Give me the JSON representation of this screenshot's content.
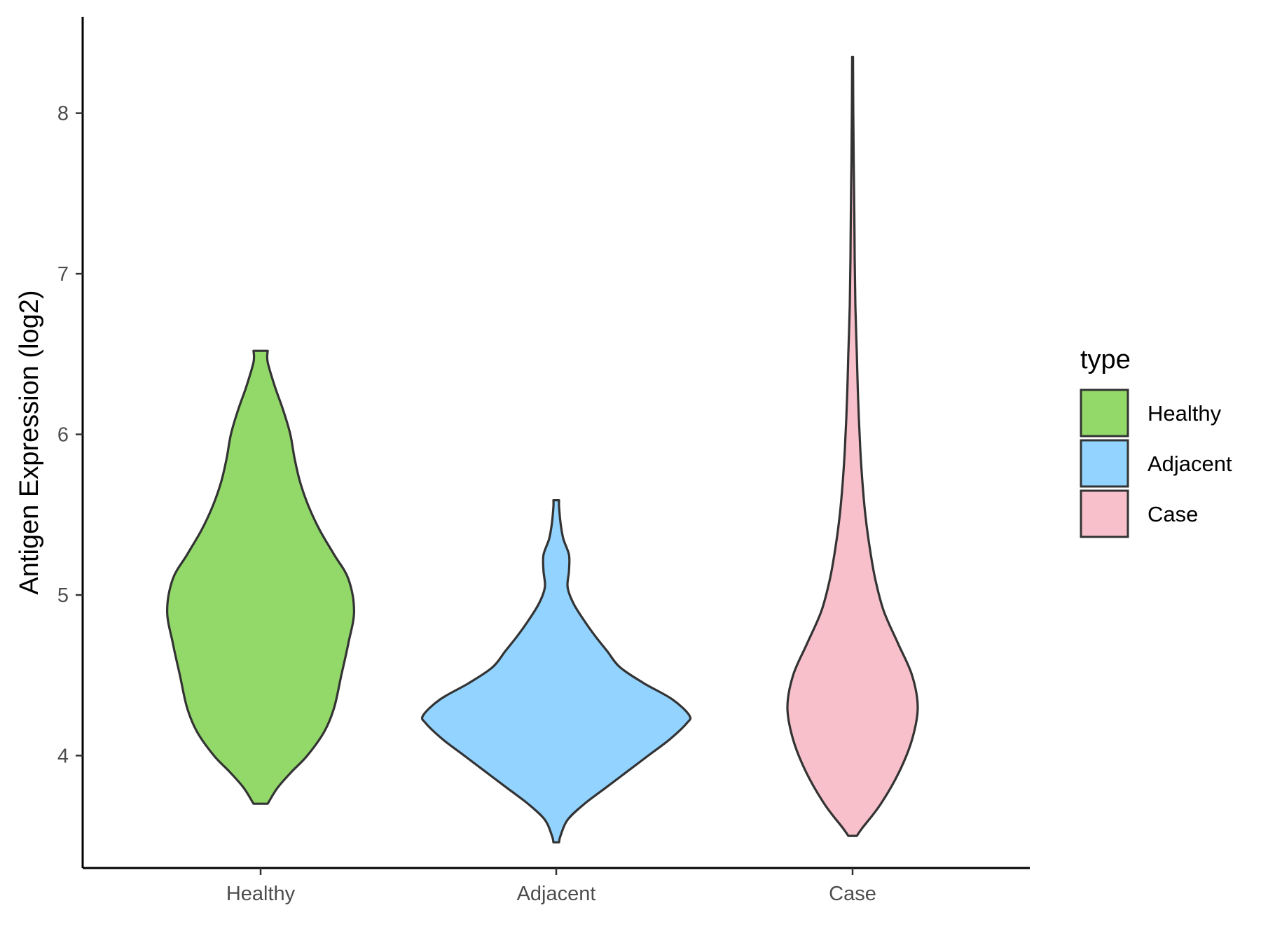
{
  "chart_data": {
    "type": "violin",
    "ylabel": "Antigen Expression (log2)",
    "xlabel": "",
    "ylim": [
      3.3,
      8.6
    ],
    "yticks": [
      4,
      5,
      6,
      7,
      8
    ],
    "categories": [
      "Healthy",
      "Adjacent",
      "Case"
    ],
    "grid": false,
    "legend": {
      "title": "type",
      "position": "right",
      "entries": [
        "Healthy",
        "Adjacent",
        "Case"
      ]
    },
    "series": [
      {
        "category": "Healthy",
        "color": "#93d96a",
        "min": 3.7,
        "max": 6.52,
        "density_profile": [
          [
            3.7,
            0.05
          ],
          [
            3.8,
            0.12
          ],
          [
            3.9,
            0.22
          ],
          [
            4.0,
            0.33
          ],
          [
            4.15,
            0.45
          ],
          [
            4.3,
            0.52
          ],
          [
            4.5,
            0.57
          ],
          [
            4.7,
            0.62
          ],
          [
            4.9,
            0.66
          ],
          [
            5.1,
            0.62
          ],
          [
            5.25,
            0.52
          ],
          [
            5.4,
            0.42
          ],
          [
            5.55,
            0.34
          ],
          [
            5.7,
            0.28
          ],
          [
            5.85,
            0.24
          ],
          [
            6.0,
            0.21
          ],
          [
            6.15,
            0.16
          ],
          [
            6.3,
            0.1
          ],
          [
            6.45,
            0.05
          ],
          [
            6.52,
            0.05
          ]
        ]
      },
      {
        "category": "Adjacent",
        "color": "#92d3ff",
        "min": 3.46,
        "max": 5.59,
        "density_profile": [
          [
            3.46,
            0.02
          ],
          [
            3.5,
            0.03
          ],
          [
            3.6,
            0.08
          ],
          [
            3.7,
            0.2
          ],
          [
            3.8,
            0.35
          ],
          [
            3.9,
            0.5
          ],
          [
            4.0,
            0.65
          ],
          [
            4.1,
            0.8
          ],
          [
            4.2,
            0.92
          ],
          [
            4.25,
            0.94
          ],
          [
            4.35,
            0.82
          ],
          [
            4.45,
            0.62
          ],
          [
            4.55,
            0.45
          ],
          [
            4.65,
            0.36
          ],
          [
            4.75,
            0.27
          ],
          [
            4.85,
            0.19
          ],
          [
            4.95,
            0.12
          ],
          [
            5.05,
            0.08
          ],
          [
            5.15,
            0.09
          ],
          [
            5.25,
            0.09
          ],
          [
            5.35,
            0.05
          ],
          [
            5.45,
            0.03
          ],
          [
            5.55,
            0.02
          ],
          [
            5.59,
            0.02
          ]
        ]
      },
      {
        "category": "Case",
        "color": "#f7c0cb",
        "min": 3.5,
        "max": 8.35,
        "density_profile": [
          [
            3.5,
            0.03
          ],
          [
            3.55,
            0.07
          ],
          [
            3.7,
            0.2
          ],
          [
            3.9,
            0.33
          ],
          [
            4.1,
            0.42
          ],
          [
            4.3,
            0.46
          ],
          [
            4.5,
            0.42
          ],
          [
            4.7,
            0.32
          ],
          [
            4.9,
            0.22
          ],
          [
            5.1,
            0.16
          ],
          [
            5.3,
            0.12
          ],
          [
            5.5,
            0.09
          ],
          [
            5.7,
            0.07
          ],
          [
            5.9,
            0.055
          ],
          [
            6.2,
            0.04
          ],
          [
            6.5,
            0.03
          ],
          [
            6.8,
            0.02
          ],
          [
            7.1,
            0.015
          ],
          [
            7.4,
            0.012
          ],
          [
            7.7,
            0.008
          ],
          [
            8.0,
            0.005
          ],
          [
            8.35,
            0.003
          ]
        ]
      }
    ]
  }
}
